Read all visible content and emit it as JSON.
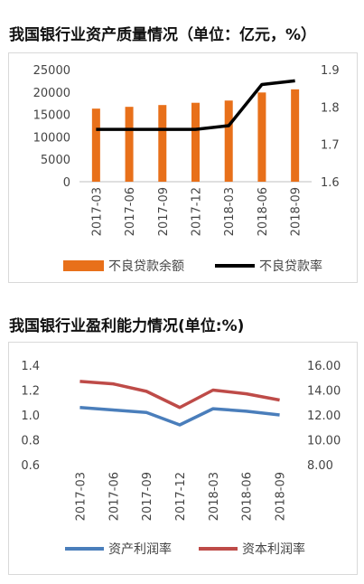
{
  "titles": {
    "chart1": "我国银行业资产质量情况（单位：亿元，%）",
    "chart2": "我国银行业盈利能力情况(单位:%)"
  },
  "chart_data": [
    {
      "type": "bar",
      "title": "我国银行业资产质量情况（单位：亿元，%）",
      "categories": [
        "2017-03",
        "2017-06",
        "2017-09",
        "2017-12",
        "2018-03",
        "2018-06",
        "2018-09"
      ],
      "series": [
        {
          "name": "不良贷款余额",
          "type": "bar",
          "axis": "left",
          "color": "#e8701a",
          "values": [
            16300,
            16700,
            17100,
            17600,
            18100,
            19900,
            20600
          ]
        },
        {
          "name": "不良贷款率",
          "type": "line",
          "axis": "right",
          "color": "#000000",
          "values": [
            1.74,
            1.74,
            1.74,
            1.74,
            1.75,
            1.86,
            1.87
          ]
        }
      ],
      "ylim_left": [
        0,
        25000
      ],
      "yticks_left": [
        "25000",
        "20000",
        "15000",
        "10000",
        "5000",
        "0"
      ],
      "ylim_right": [
        1.6,
        1.9
      ],
      "yticks_right": [
        "1.9",
        "1.8",
        "1.7",
        "1.6"
      ],
      "legend": "bottom",
      "grid": false
    },
    {
      "type": "line",
      "title": "我国银行业盈利能力情况(单位:%)",
      "categories": [
        "2017-03",
        "2017-06",
        "2017-09",
        "2017-12",
        "2018-03",
        "2018-06",
        "2018-09"
      ],
      "series": [
        {
          "name": "资产利润率",
          "axis": "left",
          "color": "#4a7ebb",
          "values": [
            1.06,
            1.04,
            1.02,
            0.92,
            1.05,
            1.03,
            1.0
          ]
        },
        {
          "name": "资本利润率",
          "axis": "right",
          "color": "#be4b48",
          "values": [
            14.7,
            14.5,
            13.9,
            12.6,
            14.0,
            13.7,
            13.2
          ]
        }
      ],
      "ylim_left": [
        0.6,
        1.4
      ],
      "yticks_left": [
        "1.4",
        "1.2",
        "1.0",
        "0.8",
        "0.6"
      ],
      "ylim_right": [
        8,
        16
      ],
      "yticks_right": [
        "16.00",
        "14.00",
        "12.00",
        "10.00",
        "8.00"
      ],
      "legend": "bottom",
      "grid": false
    }
  ]
}
